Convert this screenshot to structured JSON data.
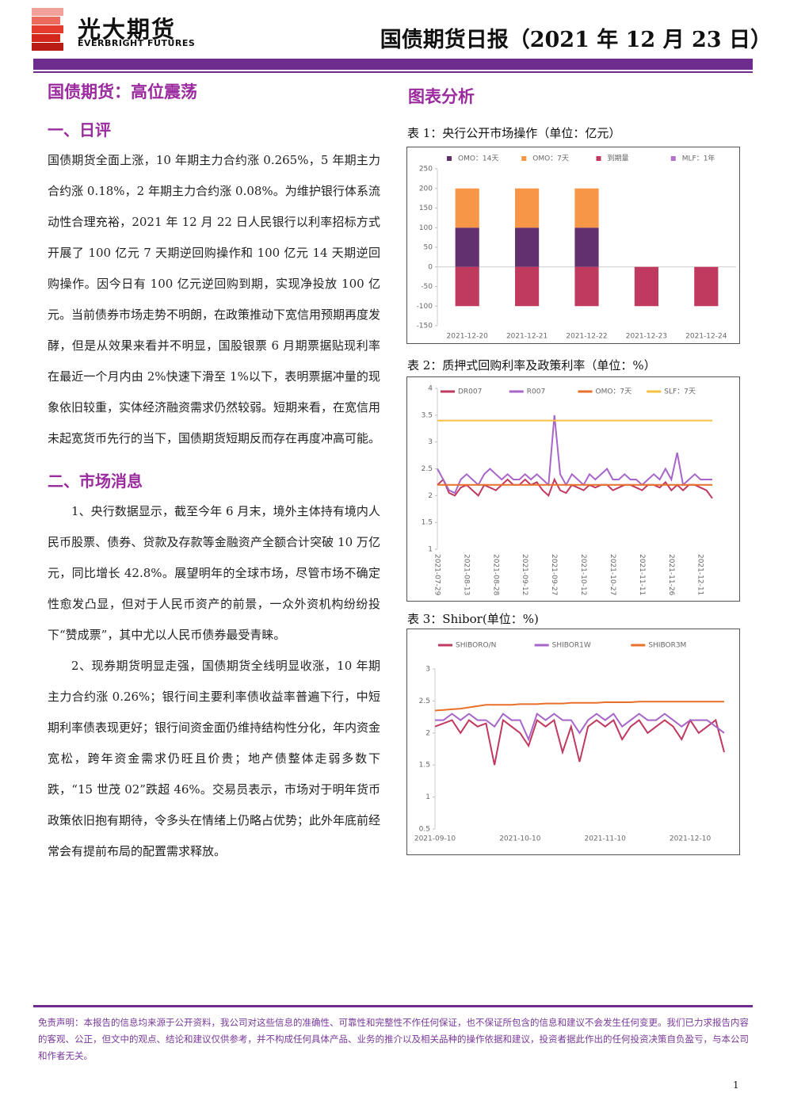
{
  "header": {
    "logo_cn": "光大期货",
    "logo_en": "EVERBRIGHT FUTURES",
    "title": "国债期货日报（2021 年 12 月 23 日）"
  },
  "headline": "国债期货：高位震荡",
  "chart_heading": "图表分析",
  "sections": [
    {
      "heading": "一、日评",
      "paragraphs": [
        "国债期货全面上涨，10 年期主力合约涨 0.265%，5 年期主力合约涨 0.18%，2 年期主力合约涨 0.08%。为维护银行体系流动性合理充裕，2021 年 12 月 22 日人民银行以利率招标方式开展了 100 亿元 7 天期逆回购操作和 100 亿元 14 天期逆回购操作。因今日有 100 亿元逆回购到期，实现净投放 100 亿元。当前债券市场走势不明朗，在政策推动下宽信用预期再度发酵，但是从效果来看并不明显，国股银票 6 月期票据贴现利率在最近一个月内由 2%快速下滑至 1%以下，表明票据冲量的现象依旧较重，实体经济融资需求仍然较弱。短期来看，在宽信用未起宽货币先行的当下，国债期货短期反而存在再度冲高可能。"
      ]
    },
    {
      "heading": "二、市场消息",
      "paragraphs": [
        "1、央行数据显示，截至今年 6 月末，境外主体持有境内人民币股票、债券、贷款及存款等金融资产全额合计突破 10 万亿元，同比增长 42.8%。展望明年的全球市场，尽管市场不确定性愈发凸显，但对于人民币资产的前景，一众外资机构纷纷投下“赞成票”，其中尤以人民币债券最受青睐。",
        "2、现券期货明显走强，国债期货全线明显收涨，10 年期主力合约涨 0.26%；银行间主要利率债收益率普遍下行，中短期利率债表现更好；银行间资金面仍维持结构性分化，年内资金宽松，跨年资金需求仍旺且价贵；地产债整体走弱多数下跌，“15 世茂 02”跌超 46%。交易员表示，市场对于明年货币政策依旧抱有期待，令多头在情绪上仍略占优势；此外年底前经常会有提前布局的配置需求释放。"
      ]
    }
  ],
  "chart_data": [
    {
      "type": "bar",
      "title": "表 1：央行公开市场操作（单位：亿元）",
      "categories": [
        "2021-12-20",
        "2021-12-21",
        "2021-12-22",
        "2021-12-23",
        "2021-12-24"
      ],
      "series": [
        {
          "name": "OMO：14天",
          "color": "#63306e",
          "values": [
            100,
            100,
            100,
            0,
            0
          ]
        },
        {
          "name": "OMO：7天",
          "color": "#f79646",
          "values": [
            100,
            100,
            100,
            0,
            0
          ]
        },
        {
          "name": "到期量",
          "color": "#c0395f",
          "values": [
            -100,
            -100,
            -100,
            -100,
            -100
          ]
        },
        {
          "name": "MLF：1年",
          "color": "#b56fce",
          "values": [
            0,
            0,
            0,
            0,
            0
          ]
        }
      ],
      "ylim": [
        -150,
        250
      ],
      "yticks": [
        -150,
        -100,
        -50,
        0,
        50,
        100,
        150,
        200,
        250
      ],
      "grid": false,
      "stacked": true
    },
    {
      "type": "line",
      "title": "表 2：质押式回购利率及政策利率（单位：%）",
      "categories": [
        "2021-07-29",
        null,
        null,
        null,
        null,
        "2021-08-13",
        null,
        null,
        null,
        null,
        "2021-08-28",
        null,
        null,
        null,
        null,
        "2021-09-12",
        null,
        null,
        null,
        null,
        "2021-09-27",
        null,
        null,
        null,
        null,
        "2021-10-12",
        null,
        null,
        null,
        null,
        "2021-10-27",
        null,
        null,
        null,
        null,
        "2021-11-11",
        null,
        null,
        null,
        null,
        "2021-11-26",
        null,
        null,
        null,
        null,
        "2021-12-11",
        null,
        null
      ],
      "series": [
        {
          "name": "DR007",
          "color": "#c0395f",
          "values": [
            2.2,
            2.3,
            2.05,
            2.0,
            2.15,
            2.2,
            2.1,
            2.0,
            2.2,
            2.15,
            2.1,
            2.2,
            2.3,
            2.2,
            2.2,
            2.3,
            2.2,
            2.25,
            2.1,
            2.0,
            2.3,
            2.1,
            2.05,
            2.2,
            2.15,
            2.1,
            2.2,
            2.15,
            2.2,
            2.2,
            2.1,
            2.15,
            2.2,
            2.2,
            2.15,
            2.1,
            2.2,
            2.2,
            2.15,
            2.25,
            2.1,
            2.2,
            2.1,
            2.2,
            2.2,
            2.15,
            2.1,
            1.95
          ]
        },
        {
          "name": "R007",
          "color": "#a865c9",
          "values": [
            2.5,
            2.3,
            2.1,
            2.05,
            2.3,
            2.4,
            2.3,
            2.2,
            2.4,
            2.5,
            2.4,
            2.3,
            2.4,
            2.3,
            2.3,
            2.4,
            2.3,
            2.4,
            2.3,
            2.2,
            3.5,
            2.4,
            2.2,
            2.4,
            2.3,
            2.2,
            2.4,
            2.3,
            2.4,
            2.5,
            2.3,
            2.3,
            2.4,
            2.3,
            2.3,
            2.2,
            2.3,
            2.4,
            2.3,
            2.5,
            2.3,
            2.8,
            2.2,
            2.3,
            2.4,
            2.3,
            2.3,
            2.3
          ]
        },
        {
          "name": "OMO：7天",
          "color": "#e8702a",
          "values": [
            2.2,
            2.2,
            2.2,
            2.2,
            2.2,
            2.2,
            2.2,
            2.2,
            2.2,
            2.2,
            2.2,
            2.2,
            2.2,
            2.2,
            2.2,
            2.2,
            2.2,
            2.2,
            2.2,
            2.2,
            2.2,
            2.2,
            2.2,
            2.2,
            2.2,
            2.2,
            2.2,
            2.2,
            2.2,
            2.2,
            2.2,
            2.2,
            2.2,
            2.2,
            2.2,
            2.2,
            2.2,
            2.2,
            2.2,
            2.2,
            2.2,
            2.2,
            2.2,
            2.2,
            2.2,
            2.2,
            2.2,
            2.2
          ]
        },
        {
          "name": "SLF：7天",
          "color": "#f5c040",
          "values": [
            3.4,
            3.4,
            3.4,
            3.4,
            3.4,
            3.4,
            3.4,
            3.4,
            3.4,
            3.4,
            3.4,
            3.4,
            3.4,
            3.4,
            3.4,
            3.4,
            3.4,
            3.4,
            3.4,
            3.4,
            3.4,
            3.4,
            3.4,
            3.4,
            3.4,
            3.4,
            3.4,
            3.4,
            3.4,
            3.4,
            3.4,
            3.4,
            3.4,
            3.4,
            3.4,
            3.4,
            3.4,
            3.4,
            3.4,
            3.4,
            3.4,
            3.4,
            3.4,
            3.4,
            3.4,
            3.4,
            3.4,
            3.4
          ]
        }
      ],
      "ylim": [
        1,
        4
      ],
      "yticks": [
        1,
        1.5,
        2,
        2.5,
        3,
        3.5,
        4
      ],
      "grid": false
    },
    {
      "type": "line",
      "title": "表 3：Shibor(单位：%)",
      "categories": [
        "2021-09-10",
        null,
        null,
        null,
        null,
        null,
        null,
        null,
        null,
        null,
        "2021-10-10",
        null,
        null,
        null,
        null,
        null,
        null,
        null,
        null,
        null,
        "2021-11-10",
        null,
        null,
        null,
        null,
        null,
        null,
        null,
        null,
        null,
        "2021-12-10",
        null,
        null,
        null,
        null
      ],
      "series": [
        {
          "name": "SHIBORO/N",
          "color": "#c0395f",
          "values": [
            2.1,
            2.15,
            2.2,
            2.0,
            2.2,
            2.1,
            2.15,
            1.5,
            2.2,
            2.1,
            2.0,
            1.8,
            2.2,
            2.1,
            2.2,
            1.7,
            2.1,
            1.55,
            2.1,
            2.2,
            2.1,
            2.2,
            1.9,
            2.1,
            2.2,
            2.0,
            2.1,
            2.2,
            2.1,
            1.9,
            2.2,
            2.0,
            2.1,
            2.2,
            1.7
          ]
        },
        {
          "name": "SHIBOR1W",
          "color": "#a865c9",
          "values": [
            2.2,
            2.2,
            2.3,
            2.2,
            2.3,
            2.2,
            2.2,
            2.1,
            2.3,
            2.2,
            2.2,
            1.9,
            2.3,
            2.2,
            2.3,
            2.2,
            2.2,
            2.0,
            2.2,
            2.3,
            2.2,
            2.3,
            2.1,
            2.2,
            2.3,
            2.2,
            2.2,
            2.3,
            2.2,
            2.1,
            2.2,
            2.2,
            2.2,
            2.1,
            2.0
          ]
        },
        {
          "name": "SHIBOR3M",
          "color": "#e8702a",
          "values": [
            2.35,
            2.36,
            2.37,
            2.38,
            2.4,
            2.42,
            2.44,
            2.44,
            2.44,
            2.44,
            2.45,
            2.45,
            2.45,
            2.46,
            2.46,
            2.46,
            2.47,
            2.47,
            2.47,
            2.47,
            2.48,
            2.48,
            2.48,
            2.48,
            2.49,
            2.49,
            2.49,
            2.49,
            2.49,
            2.49,
            2.49,
            2.49,
            2.49,
            2.49,
            2.49
          ]
        }
      ],
      "ylim": [
        0.5,
        3
      ],
      "yticks": [
        0.5,
        1,
        1.5,
        2,
        2.5,
        3
      ],
      "grid": false
    }
  ],
  "disclaimer": "免责声明：本报告的信息均来源于公开资料，我公司对这些信息的准确性、可靠性和完整性不作任何保证，也不保证所包含的信息和建议不会发生任何变更。我们已力求报告内容的客观、公正，但文中的观点、结论和建议仅供参考，并不构成任何具体产品、业务的推介以及相关品种的操作依据和建议，投资者据此作出的任何投资决策自负盈亏，与本公司和作者无关。",
  "page_number": "1"
}
